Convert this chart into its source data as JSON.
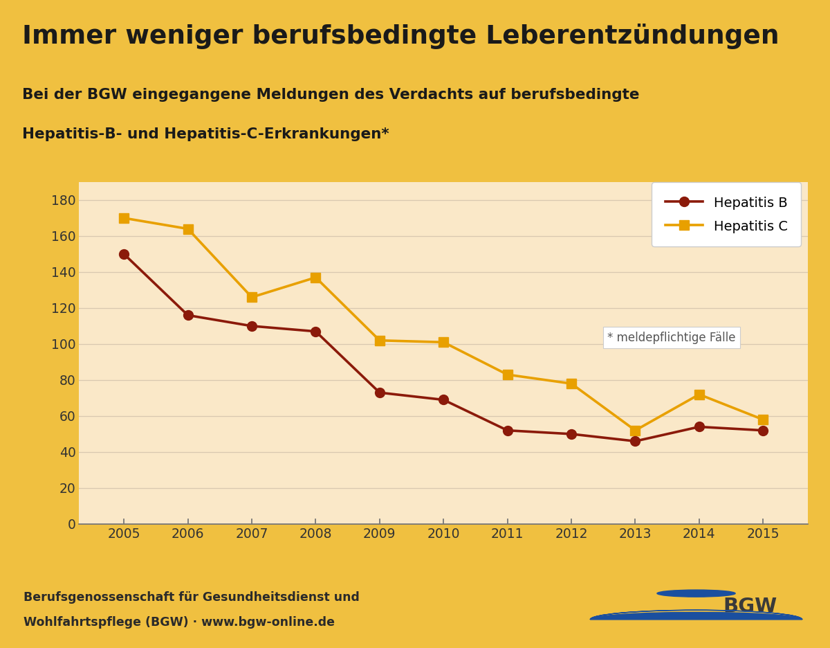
{
  "title": "Immer weniger berufsbedingte Leberentzündungen",
  "subtitle_line1": "Bei der BGW eingegangene Meldungen des Verdachts auf berufsbedingte",
  "subtitle_line2": "Hepatitis-B- und Hepatitis-C-Erkrankungen*",
  "years": [
    2005,
    2006,
    2007,
    2008,
    2009,
    2010,
    2011,
    2012,
    2013,
    2014,
    2015
  ],
  "hepatitis_b": [
    150,
    116,
    110,
    107,
    73,
    69,
    52,
    50,
    46,
    54,
    52
  ],
  "hepatitis_c": [
    170,
    164,
    126,
    137,
    102,
    101,
    83,
    78,
    52,
    72,
    58
  ],
  "color_b": "#8B1A0A",
  "color_c": "#E8A000",
  "bg_title": "#F5C842",
  "bg_subtitle": "#FFFFFF",
  "bg_chart": "#FAE8C8",
  "bg_footer": "#FFFFFF",
  "border_color": "#F0C040",
  "legend_label_b": "Hepatitis B",
  "legend_label_c": "Hepatitis C",
  "footnote": "* meldepflichtige Fälle",
  "footer_text1": "Berufsgenossenschaft für Gesundheitsdienst und",
  "footer_text2": "Wohlfahrtspflege (BGW) · www.bgw-online.de",
  "bgw_logo_text": "BGW",
  "ylim": [
    0,
    190
  ],
  "yticks": [
    0,
    20,
    40,
    60,
    80,
    100,
    120,
    140,
    160,
    180
  ]
}
